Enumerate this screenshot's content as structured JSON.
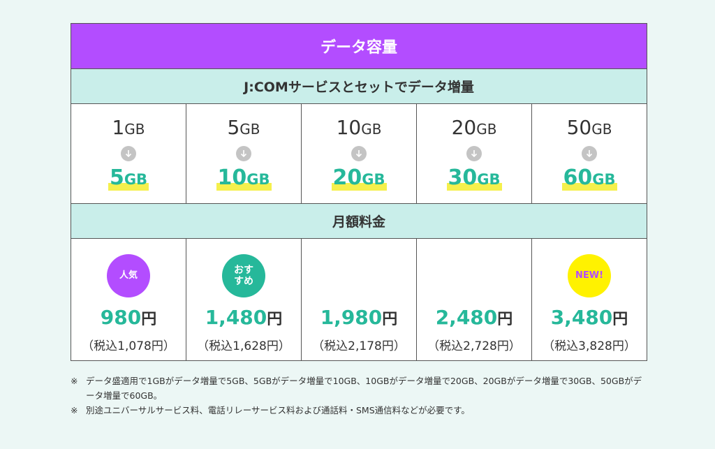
{
  "table": {
    "title": "データ容量",
    "subtitle": "J:COMサービスとセットでデータ増量",
    "price_header": "月額料金",
    "plans": [
      {
        "from": "1",
        "to": "5",
        "unit": "GB",
        "badge": "人気",
        "badge_color": "#b34dff",
        "price": "980",
        "yen": "円",
        "tax": "（税込1,078円）"
      },
      {
        "from": "5",
        "to": "10",
        "unit": "GB",
        "badge": "おすすめ",
        "badge_color": "#26b89a",
        "price": "1,480",
        "yen": "円",
        "tax": "（税込1,628円）"
      },
      {
        "from": "10",
        "to": "20",
        "unit": "GB",
        "badge": "",
        "badge_color": "",
        "price": "1,980",
        "yen": "円",
        "tax": "（税込2,178円）"
      },
      {
        "from": "20",
        "to": "30",
        "unit": "GB",
        "badge": "",
        "badge_color": "",
        "price": "2,480",
        "yen": "円",
        "tax": "（税込2,728円）"
      },
      {
        "from": "50",
        "to": "60",
        "unit": "GB",
        "badge": "NEW!",
        "badge_color": "#fff200",
        "price": "3,480",
        "yen": "円",
        "tax": "（税込3,828円）"
      }
    ]
  },
  "notes": {
    "mark": "※",
    "line1": "データ盛適用で1GBがデータ増量で5GB、5GBがデータ増量で10GB、10GBがデータ増量で20GB、20GBがデータ増量で30GB、50GBがデータ増量で60GB。",
    "line2": "別途ユニバーサルサービス料、電話リレーサービス料および通話料・SMS通信料などが必要です。"
  },
  "colors": {
    "accent_purple": "#b34dff",
    "accent_green": "#26b89a",
    "header_mint": "#c9eeea",
    "highlight_yellow": "#f5f04c"
  }
}
